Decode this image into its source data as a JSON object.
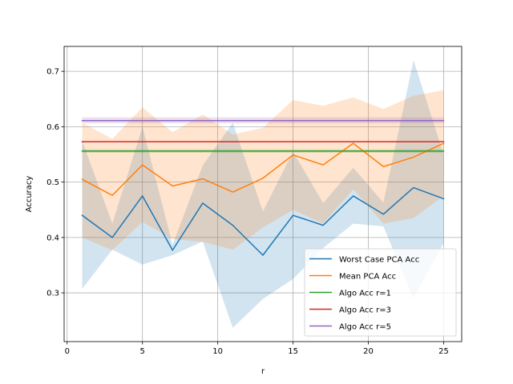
{
  "chart_data": {
    "type": "line",
    "title": "",
    "xlabel": "r",
    "ylabel": "Accuracy",
    "xlim": [
      -0.2,
      26.2
    ],
    "ylim": [
      0.212,
      0.745
    ],
    "xticks": [
      0,
      5,
      10,
      15,
      20,
      25
    ],
    "yticks": [
      0.3,
      0.4,
      0.5,
      0.6,
      0.7
    ],
    "xtick_labels": [
      "0",
      "5",
      "10",
      "15",
      "20",
      "25"
    ],
    "ytick_labels": [
      "0.3",
      "0.4",
      "0.5",
      "0.6",
      "0.7"
    ],
    "grid": true,
    "legend_position": "lower-right",
    "x": [
      1,
      3,
      5,
      7,
      9,
      11,
      13,
      15,
      17,
      19,
      21,
      23,
      25
    ],
    "series": [
      {
        "name": "Worst Case PCA Acc",
        "color": "#1f77b4",
        "values": [
          0.44,
          0.4,
          0.475,
          0.377,
          0.462,
          0.422,
          0.368,
          0.44,
          0.422,
          0.475,
          0.442,
          0.49,
          0.47
        ],
        "band_lower": [
          0.307,
          0.378,
          0.351,
          0.368,
          0.393,
          0.237,
          0.289,
          0.325,
          0.381,
          0.425,
          0.42,
          0.29,
          0.39
        ],
        "band_upper": [
          0.575,
          0.425,
          0.6,
          0.387,
          0.53,
          0.607,
          0.447,
          0.555,
          0.462,
          0.526,
          0.463,
          0.72,
          0.55
        ]
      },
      {
        "name": "Mean PCA Acc",
        "color": "#ff7f0e",
        "values": [
          0.505,
          0.476,
          0.531,
          0.493,
          0.506,
          0.482,
          0.507,
          0.549,
          0.531,
          0.57,
          0.528,
          0.545,
          0.57
        ],
        "band_lower": [
          0.4,
          0.377,
          0.428,
          0.397,
          0.392,
          0.378,
          0.418,
          0.45,
          0.425,
          0.487,
          0.425,
          0.435,
          0.475
        ],
        "band_upper": [
          0.607,
          0.578,
          0.635,
          0.59,
          0.622,
          0.586,
          0.598,
          0.648,
          0.638,
          0.653,
          0.632,
          0.656,
          0.666
        ]
      },
      {
        "name": "Algo Acc r=1",
        "color": "#2ca02c",
        "values": [
          0.556,
          0.556,
          0.556,
          0.556,
          0.556,
          0.556,
          0.556,
          0.556,
          0.556,
          0.556,
          0.556,
          0.556,
          0.556
        ],
        "band_lower": [
          0.553,
          0.553,
          0.553,
          0.553,
          0.553,
          0.553,
          0.553,
          0.553,
          0.553,
          0.553,
          0.553,
          0.553,
          0.553
        ],
        "band_upper": [
          0.559,
          0.559,
          0.559,
          0.559,
          0.559,
          0.559,
          0.559,
          0.559,
          0.559,
          0.559,
          0.559,
          0.559,
          0.559
        ]
      },
      {
        "name": "Algo Acc r=3",
        "color": "#d62728",
        "values": [
          0.573,
          0.573,
          0.573,
          0.573,
          0.573,
          0.573,
          0.573,
          0.573,
          0.573,
          0.573,
          0.573,
          0.573,
          0.573
        ]
      },
      {
        "name": "Algo Acc r=5",
        "color": "#9467bd",
        "values": [
          0.611,
          0.611,
          0.611,
          0.611,
          0.611,
          0.611,
          0.611,
          0.611,
          0.611,
          0.611,
          0.611,
          0.611,
          0.611
        ],
        "band_lower": [
          0.606,
          0.606,
          0.606,
          0.606,
          0.606,
          0.606,
          0.606,
          0.606,
          0.606,
          0.606,
          0.606,
          0.606,
          0.606
        ],
        "band_upper": [
          0.617,
          0.617,
          0.617,
          0.617,
          0.617,
          0.617,
          0.617,
          0.617,
          0.617,
          0.617,
          0.617,
          0.617,
          0.617
        ]
      }
    ]
  }
}
